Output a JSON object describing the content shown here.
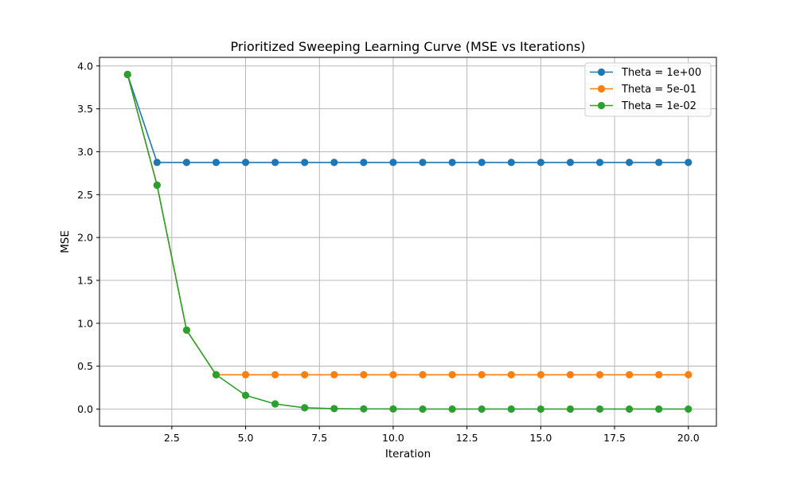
{
  "chart_data": {
    "type": "line",
    "title": "Prioritized Sweeping Learning Curve (MSE vs Iterations)",
    "xlabel": "Iteration",
    "ylabel": "MSE",
    "xlim": [
      0.05,
      20.95
    ],
    "ylim": [
      -0.2,
      4.1
    ],
    "xticks": [
      2.5,
      5.0,
      7.5,
      10.0,
      12.5,
      15.0,
      17.5,
      20.0
    ],
    "xtick_labels": [
      "2.5",
      "5.0",
      "7.5",
      "10.0",
      "12.5",
      "15.0",
      "17.5",
      "20.0"
    ],
    "yticks": [
      0.0,
      0.5,
      1.0,
      1.5,
      2.0,
      2.5,
      3.0,
      3.5,
      4.0
    ],
    "ytick_labels": [
      "0.0",
      "0.5",
      "1.0",
      "1.5",
      "2.0",
      "2.5",
      "3.0",
      "3.5",
      "4.0"
    ],
    "grid": true,
    "legend_position": "top-right",
    "x": [
      1,
      2,
      3,
      4,
      5,
      6,
      7,
      8,
      9,
      10,
      11,
      12,
      13,
      14,
      15,
      16,
      17,
      18,
      19,
      20
    ],
    "series": [
      {
        "name": "Theta = 1e+00",
        "color": "#1f77b4",
        "values": [
          3.9,
          2.875,
          2.875,
          2.875,
          2.875,
          2.875,
          2.875,
          2.875,
          2.875,
          2.875,
          2.875,
          2.875,
          2.875,
          2.875,
          2.875,
          2.875,
          2.875,
          2.875,
          2.875,
          2.875
        ]
      },
      {
        "name": "Theta = 5e-01",
        "color": "#ff7f0e",
        "values": [
          3.9,
          2.61,
          0.92,
          0.4,
          0.4,
          0.4,
          0.4,
          0.4,
          0.4,
          0.4,
          0.4,
          0.4,
          0.4,
          0.4,
          0.4,
          0.4,
          0.4,
          0.4,
          0.4,
          0.4
        ]
      },
      {
        "name": "Theta = 1e-02",
        "color": "#2ca02c",
        "values": [
          3.9,
          2.61,
          0.92,
          0.4,
          0.16,
          0.06,
          0.015,
          0.005,
          0.002,
          0.001,
          0.0,
          0.0,
          0.0,
          0.0,
          0.0,
          0.0,
          0.0,
          0.0,
          0.0,
          0.0
        ]
      }
    ]
  }
}
